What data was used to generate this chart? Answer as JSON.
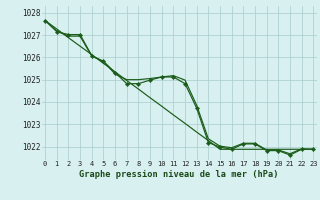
{
  "title": "Graphe pression niveau de la mer (hPa)",
  "x_labels": [
    "0",
    "1",
    "2",
    "3",
    "4",
    "5",
    "6",
    "7",
    "8",
    "9",
    "10",
    "11",
    "12",
    "13",
    "14",
    "15",
    "16",
    "17",
    "18",
    "19",
    "20",
    "21",
    "22",
    "23"
  ],
  "ylim": [
    1021.4,
    1028.3
  ],
  "xlim": [
    -0.3,
    23.3
  ],
  "yticks": [
    1022,
    1023,
    1024,
    1025,
    1026,
    1027,
    1028
  ],
  "bg_color": "#d8f0f0",
  "grid_color": "#aacccc",
  "line_color": "#1a5c1a",
  "title_color": "#1a4a1a",
  "line_straight": [
    1027.65,
    1027.27,
    1026.88,
    1026.5,
    1026.12,
    1025.73,
    1025.35,
    1024.96,
    1024.58,
    1024.19,
    1023.81,
    1023.42,
    1023.04,
    1022.65,
    1022.27,
    1021.88,
    1021.88,
    1021.88,
    1021.88,
    1021.88,
    1021.88,
    1021.88,
    1021.88,
    1021.88
  ],
  "line_mid": [
    1027.65,
    1027.18,
    1026.95,
    1026.95,
    1026.05,
    1025.82,
    1025.25,
    1025.0,
    1025.0,
    1025.05,
    1025.12,
    1025.18,
    1024.98,
    1023.85,
    1022.35,
    1022.02,
    1021.95,
    1022.15,
    1022.15,
    1021.85,
    1021.85,
    1021.68,
    1021.9,
    1021.88
  ],
  "line_main": [
    1027.65,
    1027.15,
    1027.02,
    1027.02,
    1026.08,
    1025.82,
    1025.32,
    1024.82,
    1024.82,
    1024.98,
    1025.12,
    1025.12,
    1024.82,
    1023.72,
    1022.18,
    1021.98,
    1021.88,
    1022.12,
    1022.12,
    1021.82,
    1021.82,
    1021.62,
    1021.88,
    1021.88
  ]
}
